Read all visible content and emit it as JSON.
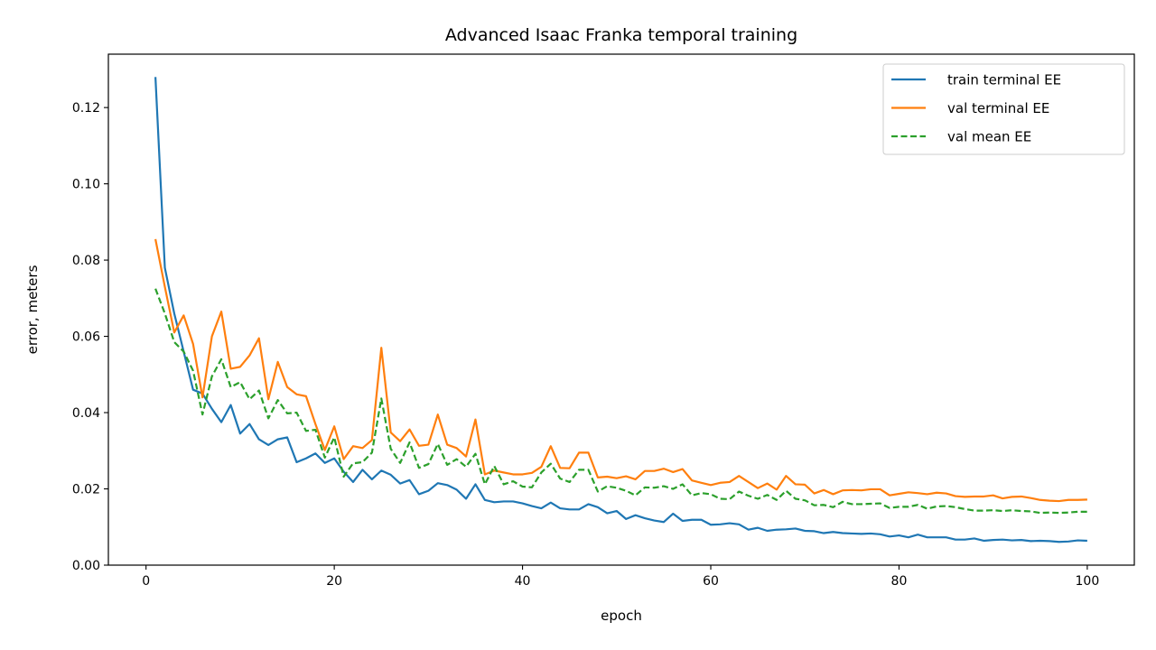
{
  "chart_data": {
    "type": "line",
    "title": "Advanced Isaac Franka temporal training",
    "xlabel": "epoch",
    "ylabel": "error, meters",
    "xlim": [
      -4,
      105
    ],
    "ylim": [
      0,
      0.134
    ],
    "xticks": [
      0,
      20,
      40,
      60,
      80,
      100
    ],
    "xtick_labels": [
      "0",
      "20",
      "40",
      "60",
      "80",
      "100"
    ],
    "yticks": [
      0,
      0.02,
      0.04,
      0.06,
      0.08,
      0.1,
      0.12
    ],
    "ytick_labels": [
      "0.00",
      "0.02",
      "0.04",
      "0.06",
      "0.08",
      "0.10",
      "0.12"
    ],
    "grid": false,
    "legend_position": "top-right",
    "x": [
      1,
      2,
      3,
      4,
      5,
      6,
      7,
      8,
      9,
      10,
      11,
      12,
      13,
      14,
      15,
      16,
      17,
      18,
      19,
      20,
      21,
      22,
      23,
      24,
      25,
      26,
      27,
      28,
      29,
      30,
      31,
      32,
      33,
      34,
      35,
      36,
      37,
      38,
      39,
      40,
      41,
      42,
      43,
      44,
      45,
      46,
      47,
      48,
      49,
      50,
      51,
      52,
      53,
      54,
      55,
      56,
      57,
      58,
      59,
      60,
      61,
      62,
      63,
      64,
      65,
      66,
      67,
      68,
      69,
      70,
      71,
      72,
      73,
      74,
      75,
      76,
      77,
      78,
      79,
      80,
      81,
      82,
      83,
      84,
      85,
      86,
      87,
      88,
      89,
      90,
      91,
      92,
      93,
      94,
      95,
      96,
      97,
      98,
      99,
      100
    ],
    "series": [
      {
        "name": "train terminal EE",
        "color": "#1f77b4",
        "style": "solid",
        "values": [
          0.128,
          0.078,
          0.066,
          0.056,
          0.046,
          0.045,
          0.041,
          0.0375,
          0.042,
          0.0345,
          0.037,
          0.033,
          0.0315,
          0.033,
          0.0335,
          0.027,
          0.028,
          0.0293,
          0.0268,
          0.028,
          0.0245,
          0.0218,
          0.025,
          0.0225,
          0.0248,
          0.0237,
          0.0214,
          0.0223,
          0.0186,
          0.0195,
          0.0215,
          0.021,
          0.0198,
          0.0174,
          0.0212,
          0.0171,
          0.0165,
          0.0167,
          0.0167,
          0.0162,
          0.0155,
          0.0149,
          0.0164,
          0.0149,
          0.0146,
          0.0146,
          0.016,
          0.0152,
          0.0136,
          0.0142,
          0.0121,
          0.0131,
          0.0123,
          0.0117,
          0.0113,
          0.0135,
          0.0116,
          0.0119,
          0.0119,
          0.0106,
          0.0107,
          0.011,
          0.0107,
          0.0093,
          0.0098,
          0.009,
          0.0093,
          0.0094,
          0.0096,
          0.009,
          0.0089,
          0.0084,
          0.0087,
          0.0084,
          0.0083,
          0.0082,
          0.0083,
          0.0081,
          0.0075,
          0.0078,
          0.0073,
          0.008,
          0.0073,
          0.0073,
          0.0073,
          0.0067,
          0.0067,
          0.007,
          0.0064,
          0.0066,
          0.0067,
          0.0065,
          0.0066,
          0.0063,
          0.0064,
          0.0063,
          0.0061,
          0.0062,
          0.0065,
          0.0064
        ]
      },
      {
        "name": "val terminal EE",
        "color": "#ff7f0e",
        "style": "solid",
        "values": [
          0.0855,
          0.073,
          0.061,
          0.0655,
          0.058,
          0.044,
          0.06,
          0.0665,
          0.0515,
          0.052,
          0.055,
          0.0595,
          0.0435,
          0.0533,
          0.0467,
          0.0448,
          0.0443,
          0.037,
          0.0302,
          0.0364,
          0.0278,
          0.0312,
          0.0307,
          0.0328,
          0.057,
          0.0348,
          0.0325,
          0.0356,
          0.0313,
          0.0316,
          0.0395,
          0.0316,
          0.0307,
          0.0285,
          0.0382,
          0.0238,
          0.0248,
          0.0243,
          0.0238,
          0.0238,
          0.0242,
          0.0258,
          0.0312,
          0.0255,
          0.0254,
          0.0295,
          0.0295,
          0.023,
          0.0232,
          0.0228,
          0.0233,
          0.0225,
          0.0247,
          0.0247,
          0.0253,
          0.0244,
          0.0252,
          0.0222,
          0.0216,
          0.021,
          0.0216,
          0.0218,
          0.0234,
          0.0218,
          0.0202,
          0.0214,
          0.0198,
          0.0234,
          0.0212,
          0.0211,
          0.0188,
          0.0197,
          0.0186,
          0.0196,
          0.0197,
          0.0196,
          0.0199,
          0.0199,
          0.0183,
          0.0187,
          0.0191,
          0.0189,
          0.0186,
          0.019,
          0.0188,
          0.0181,
          0.0179,
          0.018,
          0.018,
          0.0183,
          0.0175,
          0.0179,
          0.018,
          0.0176,
          0.0171,
          0.0169,
          0.0168,
          0.0171,
          0.0171,
          0.0172
        ]
      },
      {
        "name": "val mean EE",
        "color": "#2ca02c",
        "style": "dashed",
        "values": [
          0.0725,
          0.066,
          0.0585,
          0.056,
          0.051,
          0.0395,
          0.0495,
          0.054,
          0.0467,
          0.048,
          0.0435,
          0.0458,
          0.0385,
          0.0433,
          0.0398,
          0.04,
          0.0352,
          0.0355,
          0.0282,
          0.0335,
          0.0232,
          0.0267,
          0.027,
          0.0295,
          0.0437,
          0.0305,
          0.0268,
          0.0322,
          0.0255,
          0.0265,
          0.0318,
          0.0263,
          0.0278,
          0.0258,
          0.0292,
          0.0212,
          0.026,
          0.0212,
          0.022,
          0.0206,
          0.0204,
          0.0243,
          0.0266,
          0.0227,
          0.0218,
          0.025,
          0.025,
          0.0193,
          0.0207,
          0.0203,
          0.0195,
          0.0183,
          0.0204,
          0.0203,
          0.0207,
          0.02,
          0.0212,
          0.0183,
          0.0189,
          0.0186,
          0.0174,
          0.0173,
          0.0193,
          0.0182,
          0.0174,
          0.0184,
          0.0171,
          0.0195,
          0.0174,
          0.017,
          0.0157,
          0.0158,
          0.0152,
          0.0166,
          0.016,
          0.016,
          0.0161,
          0.0162,
          0.015,
          0.0153,
          0.0153,
          0.0158,
          0.0148,
          0.0154,
          0.0155,
          0.0152,
          0.0147,
          0.0143,
          0.0143,
          0.0144,
          0.0142,
          0.0144,
          0.0142,
          0.0141,
          0.0137,
          0.0138,
          0.0137,
          0.0138,
          0.014,
          0.014
        ]
      }
    ]
  }
}
